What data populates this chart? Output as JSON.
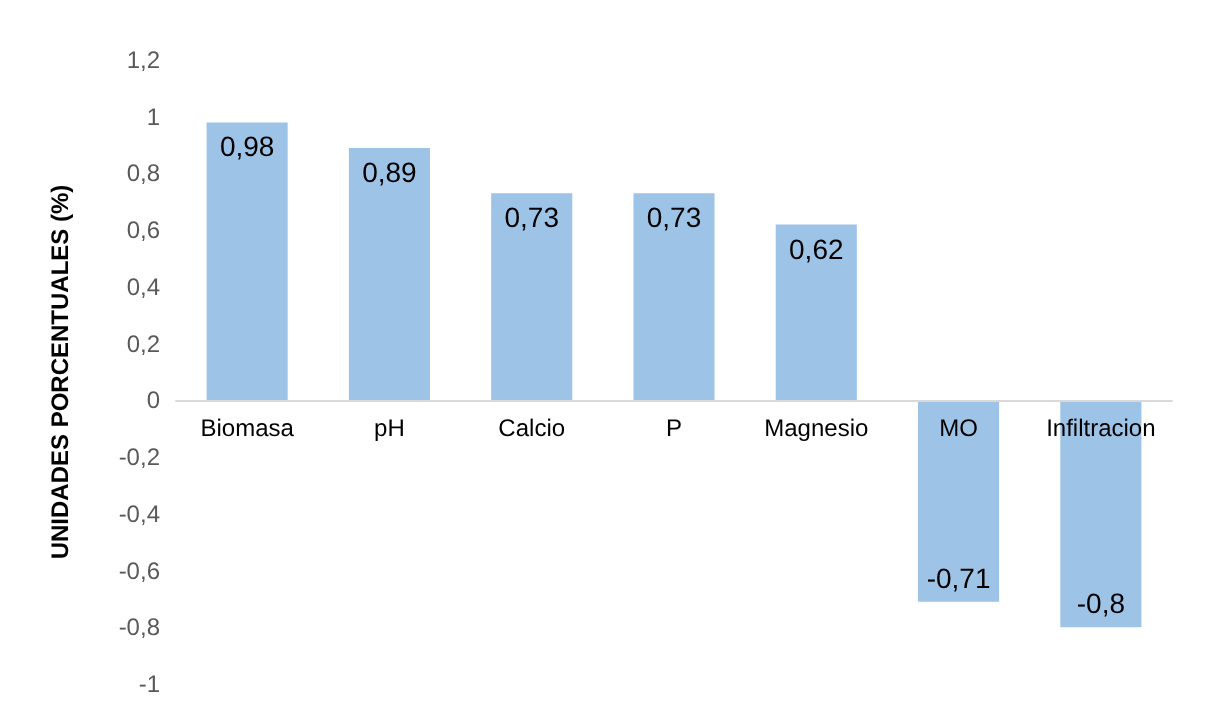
{
  "chart_data": {
    "type": "bar",
    "ylabel": "UNIDADES PORCENTUALES (%)",
    "categories": [
      "Biomasa",
      "pH",
      "Calcio",
      "P",
      "Magnesio",
      "MO",
      "Infiltracion"
    ],
    "values": [
      0.98,
      0.89,
      0.73,
      0.73,
      0.62,
      -0.71,
      -0.8
    ],
    "value_labels": [
      "0,98",
      "0,89",
      "0,73",
      "0,73",
      "0,62",
      "-0,71",
      "-0,8"
    ],
    "color": "#9dc3e6",
    "ylim": [
      -1,
      1.2
    ],
    "yticks": [
      {
        "value": -1,
        "label": "-1"
      },
      {
        "value": -0.8,
        "label": "-0,8"
      },
      {
        "value": -0.6,
        "label": "-0,6"
      },
      {
        "value": -0.4,
        "label": "-0,4"
      },
      {
        "value": -0.2,
        "label": "-0,2"
      },
      {
        "value": 0,
        "label": "0"
      },
      {
        "value": 0.2,
        "label": "0,2"
      },
      {
        "value": 0.4,
        "label": "0,4"
      },
      {
        "value": 0.6,
        "label": "0,6"
      },
      {
        "value": 0.8,
        "label": "0,8"
      },
      {
        "value": 1,
        "label": "1"
      },
      {
        "value": 1.2,
        "label": "1,2"
      }
    ],
    "grid": false
  }
}
